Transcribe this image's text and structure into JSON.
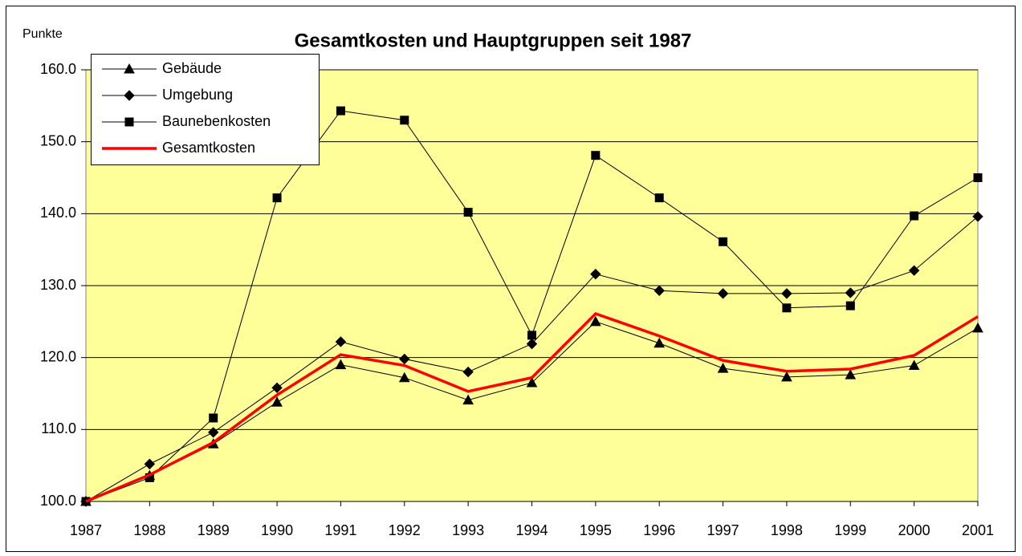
{
  "chart_data": {
    "type": "line",
    "title": "Gesamtkosten und Hauptgruppen seit 1987",
    "ylabel": "Punkte",
    "categories": [
      "1987",
      "1988",
      "1989",
      "1990",
      "1991",
      "1992",
      "1993",
      "1994",
      "1995",
      "1996",
      "1997",
      "1998",
      "1999",
      "2000",
      "2001"
    ],
    "series": [
      {
        "name": "Gebäude",
        "color": "#000000",
        "marker": "triangle",
        "values": [
          100,
          103.6,
          108.0,
          113.8,
          119.0,
          117.2,
          114.1,
          116.5,
          125.0,
          122.0,
          118.5,
          117.3,
          117.6,
          118.9,
          124.1
        ]
      },
      {
        "name": "Umgebung",
        "color": "#000000",
        "marker": "diamond",
        "values": [
          100,
          105.2,
          109.6,
          115.8,
          122.2,
          119.8,
          118.0,
          121.9,
          131.6,
          129.3,
          128.9,
          128.9,
          129.0,
          132.1,
          139.6
        ]
      },
      {
        "name": "Baunebenkosten",
        "color": "#000000",
        "marker": "square",
        "values": [
          100,
          103.3,
          111.6,
          142.2,
          154.3,
          153.0,
          140.2,
          123.1,
          148.1,
          142.2,
          136.1,
          126.9,
          127.2,
          139.7,
          145.0
        ]
      },
      {
        "name": "Gesamtkosten",
        "color": "#ff0000",
        "marker": "none",
        "values": [
          100,
          103.7,
          108.2,
          114.8,
          120.4,
          118.9,
          115.3,
          117.2,
          126.1,
          123.0,
          119.6,
          118.1,
          118.4,
          120.3,
          125.7
        ]
      }
    ],
    "ylim": [
      100,
      160
    ],
    "yticks": [
      {
        "value": 100,
        "label": "100.0"
      },
      {
        "value": 110,
        "label": "110.0"
      },
      {
        "value": 120,
        "label": "120.0"
      },
      {
        "value": 130,
        "label": "130.0"
      },
      {
        "value": 140,
        "label": "140.0"
      },
      {
        "value": 150,
        "label": "150.0"
      },
      {
        "value": 160,
        "label": "160.0"
      }
    ],
    "grid": true,
    "plot_background": "#ffff99",
    "legend": "upper left"
  }
}
